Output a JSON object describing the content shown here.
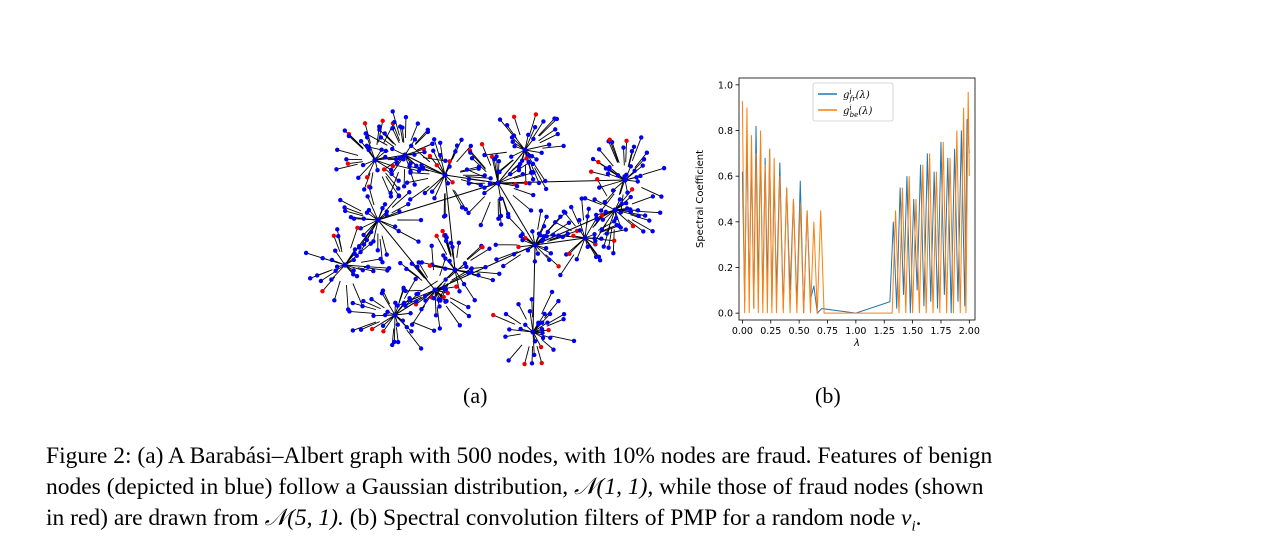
{
  "panels": {
    "a_label": "(a)",
    "b_label": "(b)"
  },
  "graph": {
    "node_count": 500,
    "fraud_fraction": 0.1,
    "colors": {
      "benign": "#0000ee",
      "fraud": "#ee0000",
      "edge": "#000000"
    }
  },
  "caption": {
    "line1": "Figure 2: (a) A Barabási–Albert graph with 500 nodes, with 10% nodes are fraud. Features of benign",
    "line2_pre": "nodes (depicted in blue) follow a Gaussian distribution,",
    "line2_math": "𝒩(1, 1),",
    "line2_post": "while those of fraud nodes (shown",
    "line3_pre": "in red) are drawn from",
    "line3_math": "𝒩(5, 1).",
    "line3_mid": "(b) Spectral convolution filters of PMP for a random node",
    "line3_math2": "v",
    "line3_sub": "i",
    "line3_end": "."
  },
  "chart_data": {
    "type": "line",
    "xlabel": "λ",
    "ylabel": "Spectral Coefficient",
    "xlim": [
      -0.03,
      2.05
    ],
    "ylim": [
      -0.03,
      1.03
    ],
    "xticks": [
      "0.00",
      "0.25",
      "0.50",
      "0.75",
      "1.00",
      "1.25",
      "1.50",
      "1.75",
      "2.00"
    ],
    "yticks": [
      "0.0",
      "0.2",
      "0.4",
      "0.6",
      "0.8",
      "1.0"
    ],
    "legend_position": "top-center",
    "series": [
      {
        "name": "g^i_fr(λ)",
        "legend_base": "g",
        "legend_sup": "i",
        "legend_sub": "fr",
        "legend_arg": "(λ)",
        "color": "#1f77b4",
        "x": [
          0.0,
          0.02,
          0.04,
          0.06,
          0.08,
          0.1,
          0.12,
          0.14,
          0.16,
          0.18,
          0.2,
          0.22,
          0.24,
          0.26,
          0.28,
          0.3,
          0.33,
          0.36,
          0.39,
          0.42,
          0.45,
          0.48,
          0.51,
          0.54,
          0.57,
          0.6,
          0.63,
          0.66,
          0.7,
          1.0,
          1.3,
          1.33,
          1.36,
          1.39,
          1.42,
          1.45,
          1.48,
          1.51,
          1.54,
          1.57,
          1.6,
          1.63,
          1.66,
          1.69,
          1.72,
          1.75,
          1.78,
          1.81,
          1.84,
          1.87,
          1.9,
          1.93,
          1.96,
          1.98,
          2.0
        ],
        "y": [
          0.62,
          0.05,
          0.78,
          0.08,
          0.7,
          0.02,
          0.82,
          0.1,
          0.75,
          0.04,
          0.68,
          0.12,
          0.72,
          0.03,
          0.6,
          0.08,
          0.66,
          0.02,
          0.55,
          0.1,
          0.5,
          0.04,
          0.58,
          0.0,
          0.45,
          0.06,
          0.12,
          0.0,
          0.02,
          0.0,
          0.05,
          0.4,
          0.02,
          0.55,
          0.08,
          0.6,
          0.0,
          0.5,
          0.1,
          0.65,
          0.03,
          0.7,
          0.05,
          0.62,
          0.02,
          0.75,
          0.08,
          0.68,
          0.0,
          0.72,
          0.05,
          0.8,
          0.03,
          0.85,
          0.7
        ]
      },
      {
        "name": "g^i_be(λ)",
        "legend_base": "g",
        "legend_sup": "i",
        "legend_sub": "be",
        "legend_arg": "(λ)",
        "color": "#ff7f0e",
        "x": [
          0.0,
          0.02,
          0.04,
          0.06,
          0.08,
          0.1,
          0.12,
          0.14,
          0.16,
          0.18,
          0.2,
          0.22,
          0.24,
          0.26,
          0.28,
          0.3,
          0.33,
          0.36,
          0.39,
          0.42,
          0.45,
          0.48,
          0.51,
          0.54,
          0.57,
          0.6,
          0.63,
          0.66,
          0.69,
          0.72,
          1.32,
          1.35,
          1.38,
          1.41,
          1.44,
          1.47,
          1.5,
          1.53,
          1.56,
          1.59,
          1.62,
          1.65,
          1.68,
          1.71,
          1.74,
          1.77,
          1.8,
          1.83,
          1.86,
          1.89,
          1.92,
          1.95,
          1.97,
          1.99,
          2.0
        ],
        "y": [
          0.93,
          0.0,
          0.9,
          0.0,
          0.78,
          0.02,
          0.7,
          0.0,
          0.8,
          0.0,
          0.65,
          0.0,
          0.72,
          0.0,
          0.68,
          0.0,
          0.6,
          0.0,
          0.55,
          0.0,
          0.5,
          0.0,
          0.48,
          0.0,
          0.45,
          0.0,
          0.4,
          0.0,
          0.45,
          0.0,
          0.0,
          0.45,
          0.0,
          0.55,
          0.0,
          0.6,
          0.0,
          0.5,
          0.0,
          0.65,
          0.0,
          0.7,
          0.0,
          0.62,
          0.0,
          0.75,
          0.0,
          0.68,
          0.0,
          0.8,
          0.0,
          0.9,
          0.0,
          0.97,
          0.6
        ]
      }
    ]
  }
}
